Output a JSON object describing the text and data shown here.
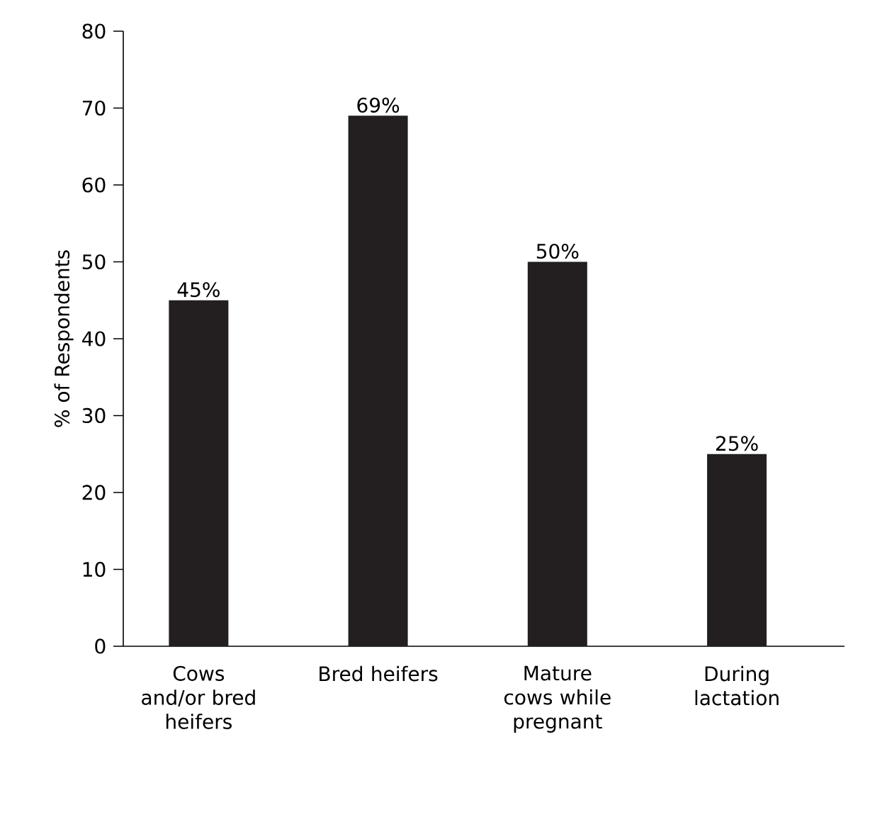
{
  "chart_data": {
    "type": "bar",
    "ylabel": "% of Respondents",
    "categories": [
      "Cows and/or bred heifers",
      "Bred heifers",
      "Mature cows while pregnant",
      "During lactation"
    ],
    "values": [
      45,
      69,
      50,
      25
    ],
    "value_labels": [
      "45%",
      "69%",
      "50%",
      "25%"
    ],
    "color": "#231f20",
    "ylim": [
      0,
      80
    ],
    "yticks": [
      0,
      10,
      20,
      30,
      40,
      50,
      60,
      70,
      80
    ]
  }
}
